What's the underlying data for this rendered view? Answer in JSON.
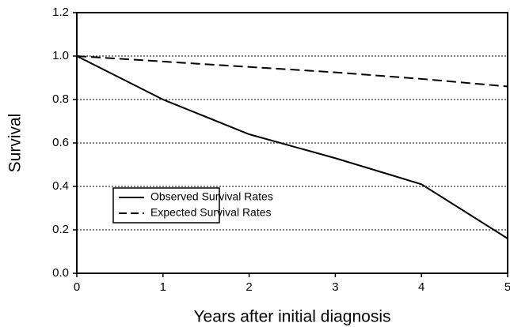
{
  "chart_data": {
    "type": "line",
    "x_label": "Years after initial diagnosis",
    "y_label": "Survival",
    "x": [
      0,
      1,
      2,
      3,
      4,
      5
    ],
    "series": [
      {
        "name": "Observed Survival Rates",
        "color": "#000000",
        "line_style": "solid",
        "values": [
          1.0,
          0.8,
          0.64,
          0.53,
          0.41,
          0.16
        ]
      },
      {
        "name": "Expected Survival Rates",
        "color": "#000000",
        "line_style": "dashed",
        "values": [
          1.0,
          0.975,
          0.95,
          0.925,
          0.895,
          0.86
        ]
      }
    ],
    "xlim": [
      0,
      5
    ],
    "xticks": [
      0,
      1,
      2,
      3,
      4,
      5
    ],
    "ylim": [
      0,
      1.2
    ],
    "yticks": [
      {
        "value": 0,
        "label": "0.0"
      },
      0.2,
      0.4,
      0.6,
      0.8,
      {
        "value": 1,
        "label": "1.0"
      },
      1.2
    ],
    "grid": true
  }
}
